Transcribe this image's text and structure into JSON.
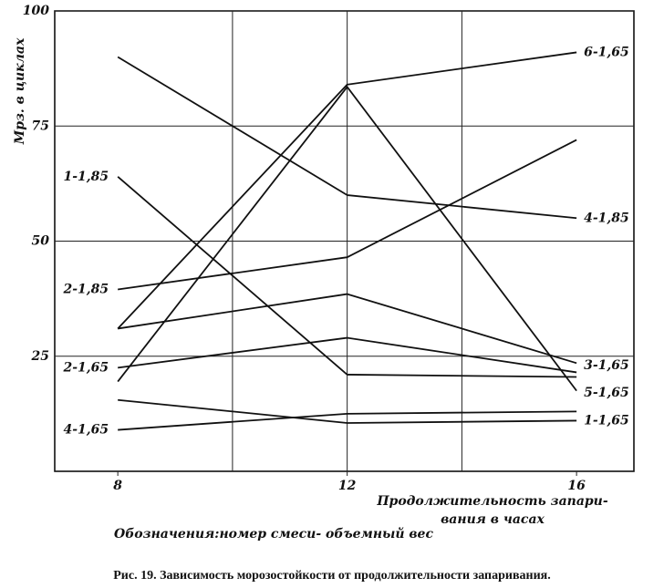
{
  "chart_data": {
    "type": "line",
    "ylabel": "Мрз. в циклах",
    "xlabel": [
      "Продолжительность запари-",
      "вания в часах"
    ],
    "note": "Обозначения:номер смеси- объемный вес",
    "caption": "Рис. 19. Зависимость морозостойкости от продолжительности запаривания.",
    "x": [
      8,
      12,
      16
    ],
    "xlim": [
      6.9,
      17
    ],
    "xticks": [
      8,
      12,
      16
    ],
    "xgrid": [
      10,
      12,
      14
    ],
    "ylim": [
      0,
      100
    ],
    "yticks": [
      25,
      50,
      75,
      100
    ],
    "grid": true,
    "series": [
      {
        "color": "#111111",
        "values": [
          90,
          60,
          55
        ]
      },
      {
        "color": "#111111",
        "values": [
          31,
          84,
          91
        ]
      },
      {
        "color": "#111111",
        "values": [
          19.5,
          83.5,
          17.5
        ]
      },
      {
        "color": "#111111",
        "values": [
          64,
          21,
          20.5
        ]
      },
      {
        "color": "#111111",
        "values": [
          39.5,
          46.5,
          72
        ]
      },
      {
        "color": "#111111",
        "values": [
          31,
          38.5,
          23.5
        ]
      },
      {
        "color": "#111111",
        "values": [
          22.5,
          29,
          21.5
        ]
      },
      {
        "color": "#111111",
        "values": [
          15.5,
          10.5,
          11
        ]
      },
      {
        "color": "#111111",
        "values": [
          9,
          12.5,
          13
        ]
      }
    ],
    "annotations": [
      {
        "text": "1-1,85",
        "x": 8,
        "y": 64
      },
      {
        "text": "2-1,85",
        "x": 8,
        "y": 39.5
      },
      {
        "text": "2-1,65",
        "x": 8,
        "y": 22.5
      },
      {
        "text": "4-1,65",
        "x": 8,
        "y": 9
      },
      {
        "text": "6-1,65",
        "x": 16,
        "y": 91
      },
      {
        "text": "4-1,85",
        "x": 16,
        "y": 55
      },
      {
        "text": "3-1,65",
        "x": 16,
        "y": 23
      },
      {
        "text": "5-1,65",
        "x": 16,
        "y": 17
      },
      {
        "text": "1-1,65",
        "x": 16,
        "y": 11
      }
    ]
  }
}
